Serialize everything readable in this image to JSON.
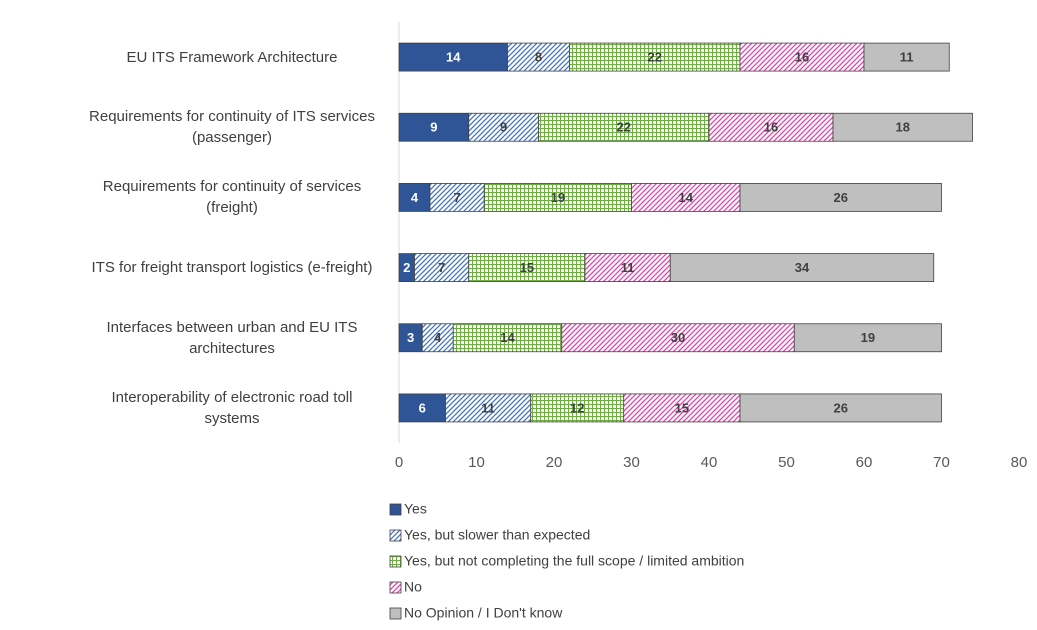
{
  "chart_data": {
    "type": "stacked_bar_horizontal",
    "categories": [
      "EU ITS Framework Architecture",
      "Requirements for continuity of ITS services (passenger)",
      "Requirements for continuity of services (freight)",
      "ITS for freight transport logistics (e-freight)",
      "Interfaces between urban and EU ITS architectures",
      "Interoperability of electronic road toll systems"
    ],
    "series": [
      {
        "name": "Yes",
        "color": "#2f5597",
        "pattern": "solid",
        "values": [
          14,
          9,
          4,
          2,
          3,
          6
        ]
      },
      {
        "name": "Yes, but slower than expected",
        "color": "#4472c4",
        "pattern": "diagonal",
        "values": [
          8,
          9,
          7,
          7,
          4,
          11
        ]
      },
      {
        "name": "Yes, but not completing the full scope / limited ambition",
        "color": "#70ad47",
        "pattern": "grid",
        "values": [
          22,
          22,
          19,
          15,
          14,
          12
        ]
      },
      {
        "name": "No",
        "color": "#e040b0",
        "pattern": "diagonal",
        "values": [
          16,
          16,
          14,
          11,
          30,
          15
        ]
      },
      {
        "name": "No Opinion / I Don't know",
        "color": "#bfbfbf",
        "pattern": "solid",
        "values": [
          11,
          18,
          26,
          34,
          19,
          26
        ]
      }
    ],
    "xlim": [
      0,
      80
    ],
    "xticks": [
      0,
      10,
      20,
      30,
      40,
      50,
      60,
      70,
      80
    ],
    "legend": "bottom-left"
  }
}
